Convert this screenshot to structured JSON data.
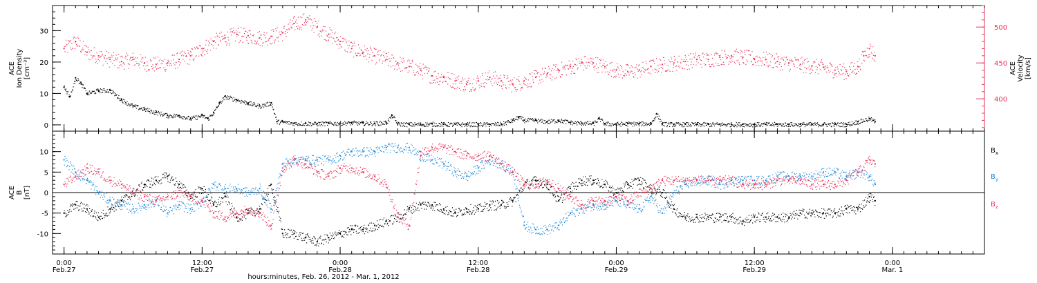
{
  "colors": {
    "black": "#000000",
    "pink": "#e8325a",
    "blue": "#1e88d9"
  },
  "xaxis": {
    "label": "hours:minutes, Feb. 26, 2012 - Mar. 1, 2012",
    "ticks": [
      {
        "hour": 0,
        "time": "0:00",
        "date": "Feb.27"
      },
      {
        "hour": 12,
        "time": "12:00",
        "date": "Feb.27"
      },
      {
        "hour": 24,
        "time": "0:00",
        "date": "Feb.28"
      },
      {
        "hour": 36,
        "time": "12:00",
        "date": "Feb.28"
      },
      {
        "hour": 48,
        "time": "0:00",
        "date": "Feb.29"
      },
      {
        "hour": 60,
        "time": "12:00",
        "date": "Feb.29"
      },
      {
        "hour": 72,
        "time": "0:00",
        "date": "Mar. 1"
      }
    ],
    "range_hours": [
      -1,
      80
    ]
  },
  "chart_data": [
    {
      "type": "scatter",
      "panel": "top",
      "ylabel_left": [
        "ACE",
        "Ion Density",
        "[cm⁻³]"
      ],
      "ylabel_right": [
        "ACE",
        "Velocity",
        "[km/s]"
      ],
      "left_ticks": [
        0,
        10,
        20,
        30
      ],
      "right_ticks": [
        400,
        450,
        500
      ],
      "ylim_left": [
        -2,
        38
      ],
      "ylim_right": [
        355,
        530
      ],
      "series": [
        {
          "axis": "left",
          "color": "black",
          "x": [
            0,
            0.5,
            1,
            1.5,
            2,
            3,
            4,
            5,
            6,
            7,
            8,
            9,
            10,
            11,
            12,
            12.5,
            13,
            13.5,
            14,
            15,
            16,
            17,
            18,
            18.5,
            19,
            20,
            21,
            22,
            23,
            24,
            25,
            26,
            27,
            28,
            28.5,
            29,
            30,
            31,
            32,
            33,
            34,
            35,
            36,
            37,
            38,
            39,
            39.5,
            40,
            41,
            42,
            43,
            44,
            45,
            46,
            46.5,
            47,
            48,
            49,
            50,
            51,
            51.5,
            52,
            53,
            54,
            55,
            56,
            57,
            58,
            59,
            60,
            61,
            62,
            63,
            64,
            65,
            66,
            67,
            68,
            69,
            70,
            70.5
          ],
          "y": [
            12,
            9,
            15,
            13,
            10,
            11,
            11,
            8,
            6,
            5,
            4,
            3,
            3,
            2,
            3,
            2,
            4,
            7,
            9,
            8,
            7,
            6,
            7,
            1,
            1,
            0.5,
            0.5,
            0.4,
            0.5,
            0.6,
            0.7,
            0.6,
            0.5,
            0.8,
            3,
            0.3,
            0.2,
            0.2,
            0.3,
            0.2,
            0.2,
            0.2,
            0.2,
            0.2,
            0.3,
            1.5,
            2.5,
            1.5,
            1.5,
            1,
            1.5,
            0.8,
            0.6,
            0.5,
            2,
            0.4,
            0.3,
            0.4,
            0.4,
            0.5,
            3.5,
            0.3,
            0.2,
            0.2,
            0.2,
            0.2,
            0.2,
            0.2,
            0.2,
            0.2,
            0.2,
            0.2,
            0.2,
            0.2,
            0.2,
            0.2,
            0.2,
            0.2,
            1,
            2,
            1
          ]
        },
        {
          "axis": "right",
          "color": "pink",
          "x": [
            0,
            1,
            2,
            3,
            4,
            5,
            6,
            7,
            8,
            9,
            10,
            11,
            12,
            13,
            14,
            15,
            16,
            17,
            18,
            19,
            20,
            21,
            22,
            23,
            24,
            25,
            26,
            27,
            28,
            29,
            30,
            31,
            32,
            33,
            34,
            35,
            36,
            37,
            38,
            39,
            40,
            41,
            42,
            43,
            44,
            45,
            46,
            47,
            48,
            49,
            50,
            51,
            52,
            53,
            54,
            55,
            56,
            57,
            58,
            59,
            60,
            61,
            62,
            63,
            64,
            65,
            66,
            67,
            68,
            69,
            69.5,
            70,
            70.5
          ],
          "y": [
            470,
            480,
            465,
            460,
            455,
            452,
            455,
            450,
            448,
            450,
            455,
            460,
            470,
            480,
            485,
            490,
            488,
            485,
            487,
            492,
            505,
            510,
            500,
            490,
            480,
            470,
            465,
            460,
            455,
            450,
            445,
            440,
            432,
            430,
            425,
            420,
            425,
            430,
            425,
            420,
            425,
            430,
            435,
            440,
            445,
            450,
            450,
            445,
            440,
            438,
            440,
            445,
            448,
            450,
            452,
            455,
            455,
            458,
            460,
            458,
            456,
            455,
            452,
            450,
            448,
            446,
            444,
            440,
            438,
            445,
            460,
            470,
            460
          ]
        }
      ]
    },
    {
      "type": "scatter",
      "panel": "bottom",
      "ylabel_left": [
        "ACE",
        "B",
        "[nT]"
      ],
      "left_ticks": [
        -10,
        -5,
        0,
        5,
        10
      ],
      "ylim": [
        -15,
        15
      ],
      "legend": [
        "Bx",
        "By",
        "Bz"
      ],
      "series": [
        {
          "name": "Bx",
          "color": "black",
          "x": [
            0,
            1,
            2,
            3,
            4,
            5,
            6,
            7,
            8,
            9,
            10,
            11,
            12,
            13,
            14,
            15,
            16,
            17,
            18,
            19,
            20,
            21,
            22,
            23,
            24,
            25,
            26,
            27,
            28,
            29,
            30,
            31,
            32,
            33,
            34,
            35,
            36,
            37,
            38,
            39,
            40,
            41,
            42,
            43,
            44,
            45,
            46,
            47,
            48,
            49,
            50,
            51,
            52,
            53,
            54,
            55,
            56,
            57,
            58,
            59,
            60,
            61,
            62,
            63,
            64,
            65,
            66,
            67,
            68,
            69,
            70,
            70.5
          ],
          "y": [
            -5,
            -3,
            -4,
            -6,
            -4,
            -2,
            0,
            2,
            3,
            4,
            2,
            -1,
            1,
            -3,
            -1,
            -6,
            -5,
            -4,
            2,
            -10,
            -10,
            -11,
            -12,
            -11,
            -10,
            -9,
            -9,
            -8,
            -7,
            -6,
            -4,
            -3,
            -3,
            -4,
            -5,
            -4,
            -4,
            -3,
            -3,
            -2,
            2,
            3,
            2,
            -2,
            1,
            3,
            3,
            2,
            0,
            2,
            3,
            1,
            0,
            -4,
            -6,
            -6,
            -6,
            -6,
            -6,
            -7,
            -6,
            -6,
            -6,
            -6,
            -5,
            -5,
            -5,
            -5,
            -4,
            -4,
            -1,
            -2
          ]
        },
        {
          "name": "By",
          "color": "blue",
          "x": [
            0,
            1,
            2,
            3,
            4,
            5,
            6,
            7,
            8,
            9,
            10,
            11,
            12,
            13,
            14,
            15,
            16,
            17,
            18,
            19,
            20,
            21,
            22,
            23,
            24,
            25,
            26,
            27,
            28,
            29,
            30,
            31,
            32,
            33,
            34,
            35,
            36,
            37,
            38,
            39,
            40,
            41,
            42,
            43,
            44,
            45,
            46,
            47,
            48,
            49,
            50,
            51,
            52,
            53,
            54,
            55,
            56,
            57,
            58,
            59,
            60,
            61,
            62,
            63,
            64,
            65,
            66,
            67,
            68,
            69,
            70,
            70.5
          ],
          "y": [
            8,
            5,
            3,
            0,
            -2,
            -3,
            -4,
            -3,
            -2,
            -5,
            -3,
            -4,
            -2,
            2,
            1,
            1,
            0,
            1,
            -4,
            7,
            8,
            8,
            8,
            8,
            9,
            10,
            10,
            10,
            11,
            11,
            11,
            9,
            8,
            7,
            5,
            4,
            6,
            8,
            7,
            5,
            -8,
            -9,
            -9,
            -8,
            -5,
            -4,
            -3,
            -3,
            -2,
            -3,
            -4,
            -1,
            -5,
            0,
            2,
            3,
            3,
            2,
            3,
            3,
            3,
            3,
            4,
            4,
            4,
            4,
            5,
            5,
            4,
            5,
            4,
            2
          ]
        },
        {
          "name": "Bz",
          "color": "pink",
          "x": [
            0,
            1,
            2,
            3,
            4,
            5,
            6,
            7,
            8,
            9,
            10,
            11,
            12,
            13,
            14,
            15,
            16,
            17,
            18,
            19,
            20,
            21,
            22,
            23,
            24,
            25,
            26,
            27,
            28,
            29,
            30,
            31,
            32,
            33,
            34,
            35,
            36,
            37,
            38,
            39,
            40,
            41,
            42,
            43,
            44,
            45,
            46,
            47,
            48,
            49,
            50,
            51,
            52,
            53,
            54,
            55,
            56,
            57,
            58,
            59,
            60,
            61,
            62,
            63,
            64,
            65,
            66,
            67,
            68,
            69,
            70,
            70.5
          ],
          "y": [
            2,
            4,
            6,
            5,
            3,
            2,
            0,
            -1,
            -2,
            -1,
            0,
            -1,
            -2,
            -5,
            -6,
            -5,
            -4,
            -5,
            -8,
            6,
            8,
            7,
            5,
            4,
            6,
            6,
            5,
            4,
            2,
            -6,
            -8,
            10,
            11,
            11,
            10,
            9,
            9,
            9,
            7,
            5,
            2,
            2,
            3,
            1,
            -1,
            -3,
            -2,
            -2,
            -1,
            -2,
            0,
            1,
            3,
            3,
            3,
            3,
            3,
            3,
            3,
            2,
            2,
            2,
            3,
            3,
            3,
            2,
            2,
            2,
            3,
            5,
            8,
            7
          ]
        }
      ]
    }
  ]
}
